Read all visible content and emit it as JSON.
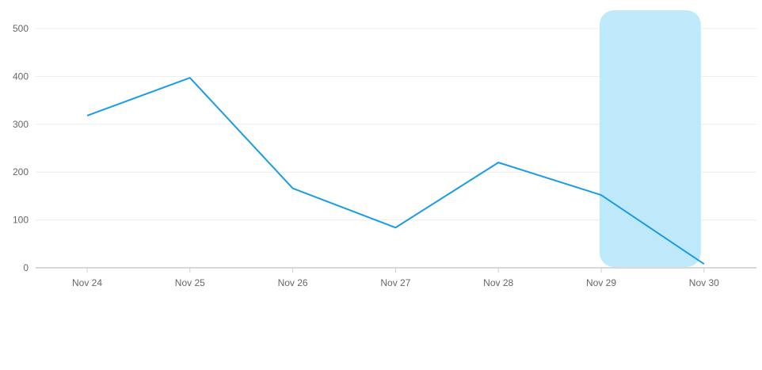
{
  "chart_data": {
    "type": "line",
    "categories": [
      "Nov 24",
      "Nov 25",
      "Nov 26",
      "Nov 27",
      "Nov 28",
      "Nov 29",
      "Nov 30"
    ],
    "series": [
      {
        "values": [
          318,
          397,
          166,
          84,
          220,
          152,
          8
        ],
        "color": "#1a9be8"
      }
    ],
    "ylim": [
      0,
      500
    ],
    "yticks": [
      0,
      100,
      200,
      300,
      400,
      500
    ],
    "grid": true,
    "highlight": {
      "from": "Nov 29",
      "to": "Nov 30",
      "color": "#bde9fb"
    },
    "title": "",
    "xlabel": "",
    "ylabel": ""
  }
}
